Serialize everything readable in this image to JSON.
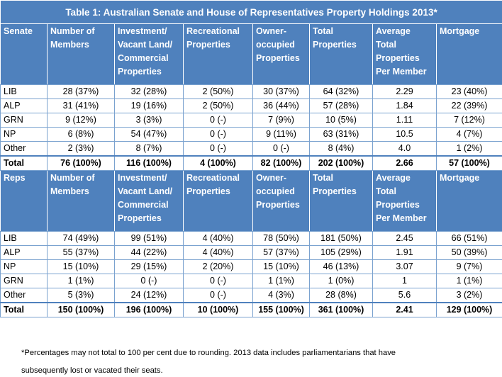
{
  "title": "Table 1: Australian Senate and House of Representatives Property Holdings 2013*",
  "columns": [
    "Number of Members",
    "Investment/ Vacant Land/ Commercial Properties",
    "Recreational Properties",
    "Owner-occupied Properties",
    "Total Properties",
    "Average Total Properties Per Member",
    "Mortgage"
  ],
  "senate": {
    "label": "Senate",
    "rows": [
      {
        "party": "LIB",
        "cells": [
          "28 (37%)",
          "32 (28%)",
          "2 (50%)",
          "30 (37%)",
          "64 (32%)",
          "2.29",
          "23 (40%)"
        ]
      },
      {
        "party": "ALP",
        "cells": [
          "31 (41%)",
          "19 (16%)",
          "2 (50%)",
          "36 (44%)",
          "57 (28%)",
          "1.84",
          "22 (39%)"
        ]
      },
      {
        "party": "GRN",
        "cells": [
          "9 (12%)",
          "3 (3%)",
          "0 (-)",
          "7 (9%)",
          "10 (5%)",
          "1.11",
          "7 (12%)"
        ]
      },
      {
        "party": "NP",
        "cells": [
          "6 (8%)",
          "54 (47%)",
          "0 (-)",
          "9 (11%)",
          "63 (31%)",
          "10.5",
          "4 (7%)"
        ]
      },
      {
        "party": "Other",
        "cells": [
          "2 (3%)",
          "8 (7%)",
          "0 (-)",
          "0 (-)",
          "8 (4%)",
          "4.0",
          "1 (2%)"
        ]
      }
    ],
    "total": {
      "party": "Total",
      "cells": [
        "76 (100%)",
        "116 (100%)",
        "4 (100%)",
        "82 (100%)",
        "202 (100%)",
        "2.66",
        "57 (100%)"
      ]
    }
  },
  "reps": {
    "label": "Reps",
    "rows": [
      {
        "party": "LIB",
        "cells": [
          "74 (49%)",
          "99 (51%)",
          "4 (40%)",
          "78 (50%)",
          "181 (50%)",
          "2.45",
          "66 (51%)"
        ]
      },
      {
        "party": "ALP",
        "cells": [
          "55 (37%)",
          "44 (22%)",
          "4 (40%)",
          "57 (37%)",
          "105 (29%)",
          "1.91",
          "50 (39%)"
        ]
      },
      {
        "party": "NP",
        "cells": [
          "15 (10%)",
          "29 (15%)",
          "2 (20%)",
          "15 (10%)",
          "46 (13%)",
          "3.07",
          "9 (7%)"
        ]
      },
      {
        "party": "GRN",
        "cells": [
          "1 (1%)",
          "0 (-)",
          "0 (-)",
          "1 (1%)",
          "1 (0%)",
          "1",
          "1 (1%)"
        ]
      },
      {
        "party": "Other",
        "cells": [
          "5 (3%)",
          "24 (12%)",
          "0 (-)",
          "4 (3%)",
          "28 (8%)",
          "5.6",
          "3 (2%)"
        ]
      }
    ],
    "total": {
      "party": "Total",
      "cells": [
        "150 (100%)",
        "196 (100%)",
        "10 (100%)",
        "155 (100%)",
        "361 (100%)",
        "2.41",
        "129 (100%)"
      ]
    }
  },
  "footnote_line1": "*Percentages may not total to 100 per cent due to rounding. 2013 data includes parliamentarians that have",
  "footnote_line2": "subsequently lost or vacated their seats."
}
